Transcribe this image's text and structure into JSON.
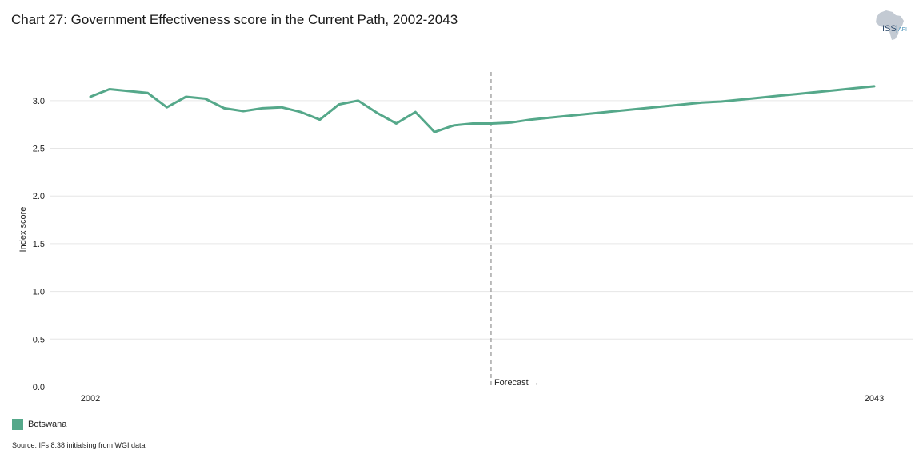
{
  "title": "Chart 27: Government Effectiveness score in the Current Path, 2002-2043",
  "logo": {
    "brand": "ISS",
    "sub": "AFI",
    "icon": "africa-map-icon"
  },
  "legend": {
    "label": "Botswana",
    "color": "#55a88a"
  },
  "source": "Source: IFs 8.38 initialsing from WGI data",
  "forecast_label": "Forecast →",
  "chart_data": {
    "type": "line",
    "title": "Chart 27: Government Effectiveness score in the Current Path, 2002-2043",
    "ylabel": "Index score",
    "xlabel": "",
    "ylim": [
      0,
      3.3
    ],
    "yticks": [
      0.0,
      0.5,
      1.0,
      1.5,
      2.0,
      2.5,
      3.0
    ],
    "x_tick_labels": [
      "2002",
      "2043"
    ],
    "forecast_start": 2023,
    "grid": true,
    "legend_position": "bottom-left",
    "x": [
      2002,
      2003,
      2004,
      2005,
      2006,
      2007,
      2008,
      2009,
      2010,
      2011,
      2012,
      2013,
      2014,
      2015,
      2016,
      2017,
      2018,
      2019,
      2020,
      2021,
      2022,
      2023,
      2024,
      2025,
      2026,
      2027,
      2028,
      2029,
      2030,
      2031,
      2032,
      2033,
      2034,
      2035,
      2036,
      2037,
      2038,
      2039,
      2040,
      2041,
      2042,
      2043
    ],
    "series": [
      {
        "name": "Botswana",
        "color": "#55a88a",
        "values": [
          3.04,
          3.12,
          3.1,
          3.08,
          2.93,
          3.04,
          3.02,
          2.92,
          2.89,
          2.92,
          2.93,
          2.88,
          2.8,
          2.96,
          3.0,
          2.87,
          2.76,
          2.88,
          2.67,
          2.74,
          2.76,
          2.76,
          2.77,
          2.8,
          2.82,
          2.84,
          2.86,
          2.88,
          2.9,
          2.92,
          2.94,
          2.96,
          2.98,
          2.99,
          3.01,
          3.03,
          3.05,
          3.07,
          3.09,
          3.11,
          3.13,
          3.15
        ]
      }
    ]
  }
}
